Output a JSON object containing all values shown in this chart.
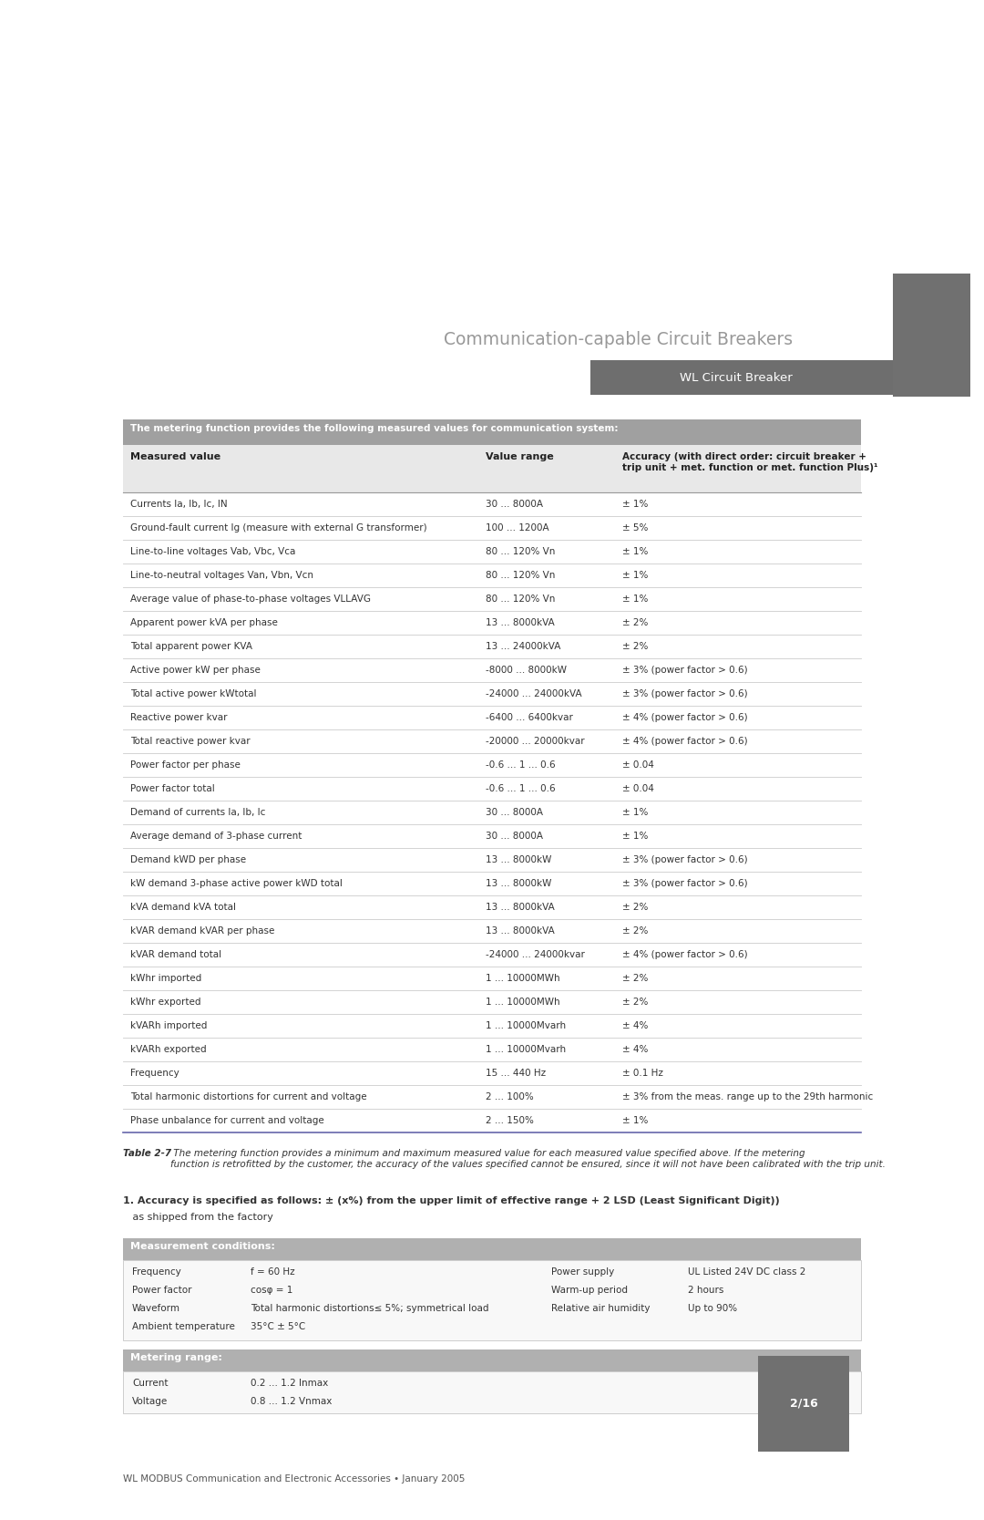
{
  "page_bg": "#ffffff",
  "title_section": "Communication-capable Circuit Breakers",
  "subtitle_section": "WL Circuit Breaker",
  "subtitle_bg": "#6e6e6e",
  "title_color": "#999999",
  "table_header_bg": "#a0a0a0",
  "col_headers": [
    "Measured value",
    "Value range",
    "Accuracy (with direct order: circuit breaker +\ntrip unit + met. function or met. function Plus)¹"
  ],
  "col_header_color": "#333333",
  "row_line_color": "#cccccc",
  "row_last_line_color": "#6666aa",
  "rows": [
    [
      "Currents Ia, Ib, Ic, IN",
      "30 ... 8000A",
      "± 1%"
    ],
    [
      "Ground-fault current Ig (measure with external G transformer)",
      "100 ... 1200A",
      "± 5%"
    ],
    [
      "Line-to-line voltages Vab, Vbc, Vca",
      "80 ... 120% Vn",
      "± 1%"
    ],
    [
      "Line-to-neutral voltages Van, Vbn, Vcn",
      "80 ... 120% Vn",
      "± 1%"
    ],
    [
      "Average value of phase-to-phase voltages VLLAVG",
      "80 ... 120% Vn",
      "± 1%"
    ],
    [
      "Apparent power kVA per phase",
      "13 ... 8000kVA",
      "± 2%"
    ],
    [
      "Total apparent power KVA",
      "13 ... 24000kVA",
      "± 2%"
    ],
    [
      "Active power kW per phase",
      "-8000 ... 8000kW",
      "± 3% (power factor > 0.6)"
    ],
    [
      "Total active power kWtotal",
      "-24000 ... 24000kVA",
      "± 3% (power factor > 0.6)"
    ],
    [
      "Reactive power kvar",
      "-6400 ... 6400kvar",
      "± 4% (power factor > 0.6)"
    ],
    [
      "Total reactive power kvar",
      "-20000 ... 20000kvar",
      "± 4% (power factor > 0.6)"
    ],
    [
      "Power factor per phase",
      "-0.6 ... 1 ... 0.6",
      "± 0.04"
    ],
    [
      "Power factor total",
      "-0.6 ... 1 ... 0.6",
      "± 0.04"
    ],
    [
      "Demand of currents Ia, Ib, Ic",
      "30 ... 8000A",
      "± 1%"
    ],
    [
      "Average demand of 3-phase current",
      "30 ... 8000A",
      "± 1%"
    ],
    [
      "Demand kWD per phase",
      "13 ... 8000kW",
      "± 3% (power factor > 0.6)"
    ],
    [
      "kW demand 3-phase active power kWD total",
      "13 ... 8000kW",
      "± 3% (power factor > 0.6)"
    ],
    [
      "kVA demand kVA total",
      "13 ... 8000kVA",
      "± 2%"
    ],
    [
      "kVAR demand kVAR per phase",
      "13 ... 8000kVA",
      "± 2%"
    ],
    [
      "kVAR demand total",
      "-24000 ... 24000kvar",
      "± 4% (power factor > 0.6)"
    ],
    [
      "kWhr imported",
      "1 ... 10000MWh",
      "± 2%"
    ],
    [
      "kWhr exported",
      "1 ... 10000MWh",
      "± 2%"
    ],
    [
      "kVARh imported",
      "1 ... 10000Mvarh",
      "± 4%"
    ],
    [
      "kVARh exported",
      "1 ... 10000Mvarh",
      "± 4%"
    ],
    [
      "Frequency",
      "15 ... 440 Hz",
      "± 0.1 Hz"
    ],
    [
      "Total harmonic distortions for current and voltage",
      "2 ... 100%",
      "± 3% from the meas. range up to the 29th harmonic"
    ],
    [
      "Phase unbalance for current and voltage",
      "2 ... 150%",
      "± 1%"
    ]
  ],
  "footnote_bold": "Table 2-7",
  "footnote_text": " The metering function provides a minimum and maximum measured value for each measured value specified above. If the metering\nfunction is retrofitted by the customer, the accuracy of the values specified cannot be ensured, since it will not have been calibrated with the trip unit.",
  "accuracy_note_bold": "1. Accuracy is specified as follows: ± (x%) from the upper limit of effective range + 2 LSD (Least Significant Digit))",
  "accuracy_note_normal": "   as shipped from the factory",
  "meas_conditions_header": "Measurement conditions:",
  "meas_conditions_header_bg": "#b0b0b0",
  "meas_conditions": [
    [
      "Frequency",
      "f = 60 Hz",
      "Power supply",
      "UL Listed 24V DC class 2"
    ],
    [
      "Power factor",
      "cosφ = 1",
      "Warm-up period",
      "2 hours"
    ],
    [
      "Waveform",
      "Total harmonic distortions≤ 5%; symmetrical load",
      "Relative air humidity",
      "Up to 90%"
    ],
    [
      "Ambient temperature",
      "35°C ± 5°C",
      "",
      ""
    ]
  ],
  "metering_range_header": "Metering range:",
  "metering_range_header_bg": "#b0b0b0",
  "metering_range": [
    [
      "Current",
      "0.2 ... 1.2 Inmax"
    ],
    [
      "Voltage",
      "0.8 ... 1.2 Vnmax"
    ]
  ],
  "footer_page": "2/16",
  "footer_text": "WL MODBUS Communication and Electronic Accessories • January 2005",
  "sidebar_color": "#707070"
}
